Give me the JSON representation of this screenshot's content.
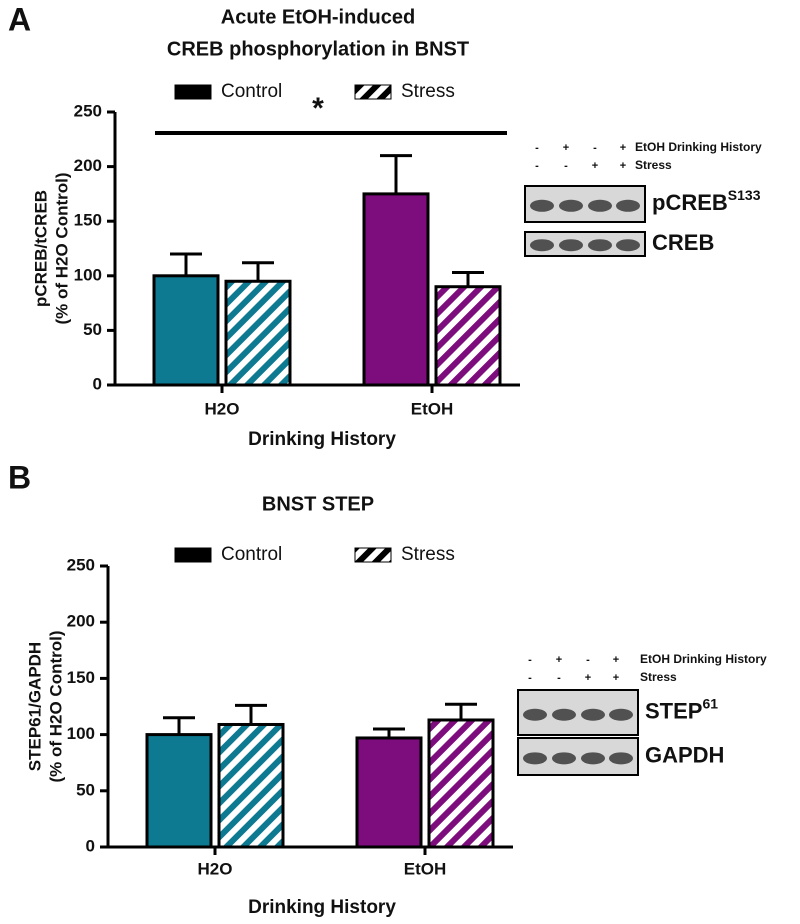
{
  "chart_data": [
    {
      "type": "bar",
      "panel": "A",
      "title": [
        "Acute EtOH-induced",
        "CREB phosphorylation in BNST"
      ],
      "y_label": [
        "pCREB/tCREB",
        "(% of H2O Control)"
      ],
      "x_label": "Drinking History",
      "categories": [
        "H2O",
        "EtOH"
      ],
      "category_colors": [
        "#0e7a92",
        "#7d0c7d"
      ],
      "series": [
        {
          "name": "Control",
          "pattern": "solid",
          "values": [
            100,
            175
          ],
          "errors": [
            20,
            35
          ]
        },
        {
          "name": "Stress",
          "pattern": "hatched",
          "values": [
            95,
            90
          ],
          "errors": [
            17,
            13
          ]
        }
      ],
      "ylim": [
        0,
        250
      ],
      "yticks": [
        0,
        50,
        100,
        150,
        200,
        250
      ],
      "annotation": "*",
      "blot": {
        "row_labels": [
          "EtOH Drinking History",
          "Stress"
        ],
        "lanes": [
          [
            "-",
            "+",
            "-",
            "+"
          ],
          [
            "-",
            "-",
            "+",
            "+"
          ]
        ],
        "bands": [
          {
            "label": "pCREB",
            "superscript": "S133"
          },
          {
            "label": "CREB",
            "superscript": null
          }
        ]
      }
    },
    {
      "type": "bar",
      "panel": "B",
      "title": [
        "BNST STEP"
      ],
      "y_label": [
        "STEP61/GAPDH",
        "(% of H2O Control)"
      ],
      "x_label": "Drinking History",
      "categories": [
        "H2O",
        "EtOH"
      ],
      "category_colors": [
        "#0e7a92",
        "#7d0c7d"
      ],
      "series": [
        {
          "name": "Control",
          "pattern": "solid",
          "values": [
            100,
            97
          ],
          "errors": [
            15,
            8
          ]
        },
        {
          "name": "Stress",
          "pattern": "hatched",
          "values": [
            109,
            113
          ],
          "errors": [
            17,
            14
          ]
        }
      ],
      "ylim": [
        0,
        250
      ],
      "yticks": [
        0,
        50,
        100,
        150,
        200,
        250
      ],
      "annotation": null,
      "blot": {
        "row_labels": [
          "EtOH Drinking History",
          "Stress"
        ],
        "lanes": [
          [
            "-",
            "+",
            "-",
            "+"
          ],
          [
            "-",
            "-",
            "+",
            "+"
          ]
        ],
        "bands": [
          {
            "label": "STEP",
            "superscript": "61"
          },
          {
            "label": "GAPDH",
            "superscript": null
          }
        ]
      }
    }
  ]
}
